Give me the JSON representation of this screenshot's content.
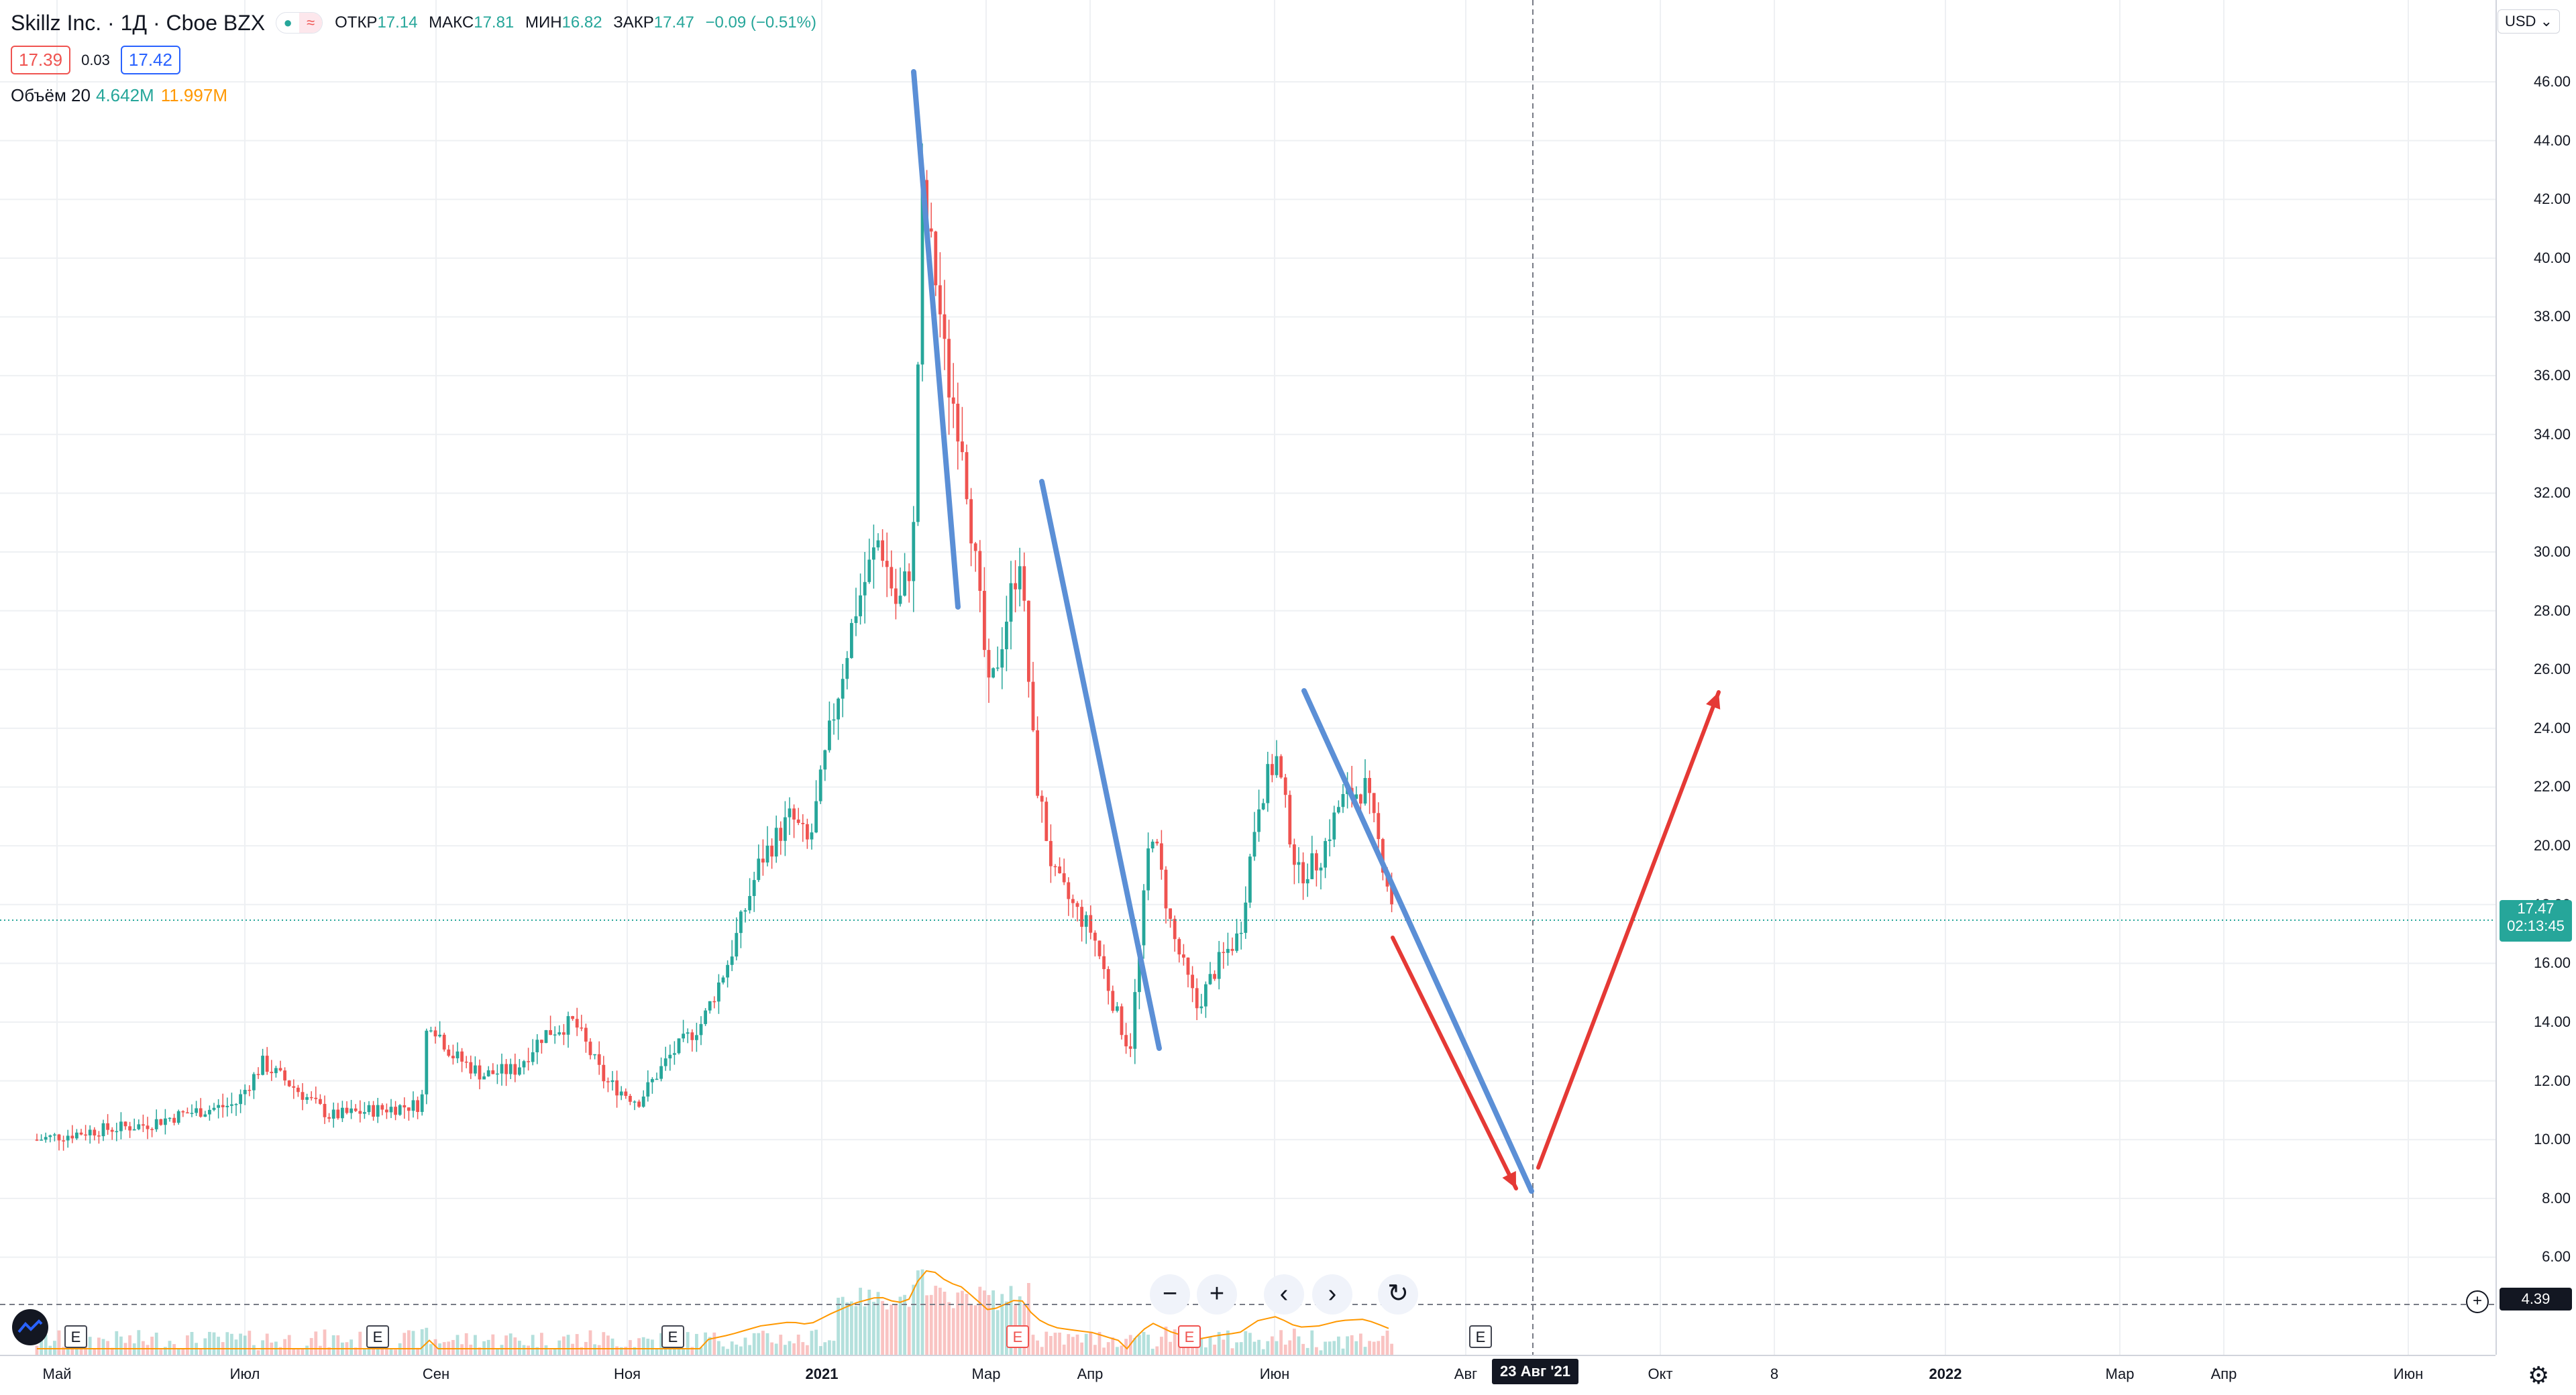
{
  "header": {
    "title": "Skillz Inc. · 1Д · Cboe BZX",
    "o_label": "ОТКР",
    "o": "17.14",
    "h_label": "МАКС",
    "h": "17.81",
    "l_label": "МИН",
    "l": "16.82",
    "c_label": "ЗАКР",
    "c": "17.47",
    "change": "−0.09 (−0.51%)",
    "sell": "17.39",
    "spread": "0.03",
    "buy": "17.42"
  },
  "volume_legend": {
    "label": "Объём 20",
    "v1": "4.642M",
    "v2": "11.997M"
  },
  "currency": "USD",
  "price_axis": {
    "ticks": [
      "46.00",
      "44.00",
      "42.00",
      "40.00",
      "38.00",
      "36.00",
      "34.00",
      "32.00",
      "30.00",
      "28.00",
      "26.00",
      "24.00",
      "22.00",
      "20.00",
      "18.00",
      "16.00",
      "14.00",
      "12.00",
      "10.00",
      "8.00",
      "6.00"
    ],
    "current_price": "17.47",
    "countdown": "02:13:45",
    "line_price": "4.39"
  },
  "time_axis": {
    "labels": [
      "Май",
      "Июл",
      "Сен",
      "Ноя",
      "2021",
      "Мар",
      "Апр",
      "Июн",
      "Авг",
      "Окт",
      "8",
      "2022",
      "Мар",
      "Апр",
      "Июн"
    ],
    "crosshair_date": "23 Авг '21"
  },
  "earnings_marker": "E",
  "icons": {
    "zoom_out": "minus-icon",
    "zoom_in": "plus-icon",
    "left": "chevron-left-icon",
    "right": "chevron-right-icon",
    "reset": "reset-icon",
    "settings": "gear-icon"
  },
  "colors": {
    "up": "#26a69a",
    "down": "#ef5350",
    "trend_blue": "#5b8fd6",
    "arrow_red": "#e53935",
    "volume_ma": "#ff9800"
  },
  "chart_data": {
    "type": "candlestick",
    "series": [
      {
        "name": "Skillz Inc.",
        "points": [
          [
            "2020-04-27",
            10.0
          ],
          [
            "2020-05-15",
            10.3
          ],
          [
            "2020-06-01",
            10.5
          ],
          [
            "2020-06-15",
            10.9
          ],
          [
            "2020-07-01",
            11.2
          ],
          [
            "2020-07-10",
            12.6
          ],
          [
            "2020-07-20",
            11.8
          ],
          [
            "2020-08-01",
            10.8
          ],
          [
            "2020-08-15",
            11.0
          ],
          [
            "2020-08-31",
            11.2
          ],
          [
            "2020-09-02",
            14.2
          ],
          [
            "2020-09-10",
            12.9
          ],
          [
            "2020-09-20",
            12.2
          ],
          [
            "2020-10-01",
            12.4
          ],
          [
            "2020-10-10",
            13.6
          ],
          [
            "2020-10-20",
            14.0
          ],
          [
            "2020-10-30",
            12.0
          ],
          [
            "2020-11-10",
            11.3
          ],
          [
            "2020-11-20",
            12.8
          ],
          [
            "2020-12-01",
            14.0
          ],
          [
            "2020-12-10",
            16.2
          ],
          [
            "2020-12-20",
            19.5
          ],
          [
            "2020-12-30",
            21.0
          ],
          [
            "2021-01-05",
            20.0
          ],
          [
            "2021-01-12",
            24.0
          ],
          [
            "2021-01-20",
            28.0
          ],
          [
            "2021-01-28",
            30.5
          ],
          [
            "2021-02-03",
            28.0
          ],
          [
            "2021-02-08",
            30.0
          ],
          [
            "2021-02-11",
            42.0
          ],
          [
            "2021-02-16",
            39.0
          ],
          [
            "2021-02-19",
            36.0
          ],
          [
            "2021-02-24",
            34.0
          ],
          [
            "2021-03-01",
            29.0
          ],
          [
            "2021-03-05",
            25.0
          ],
          [
            "2021-03-10",
            27.5
          ],
          [
            "2021-03-15",
            30.0
          ],
          [
            "2021-03-20",
            22.5
          ],
          [
            "2021-03-26",
            19.0
          ],
          [
            "2021-04-01",
            18.0
          ],
          [
            "2021-04-08",
            17.0
          ],
          [
            "2021-04-15",
            14.5
          ],
          [
            "2021-04-20",
            13.0
          ],
          [
            "2021-04-27",
            20.8
          ],
          [
            "2021-05-04",
            17.0
          ],
          [
            "2021-05-12",
            14.5
          ],
          [
            "2021-05-19",
            16.0
          ],
          [
            "2021-05-26",
            17.0
          ],
          [
            "2021-06-01",
            21.5
          ],
          [
            "2021-06-07",
            23.0
          ],
          [
            "2021-06-14",
            19.0
          ],
          [
            "2021-06-21",
            19.5
          ],
          [
            "2021-06-28",
            21.5
          ],
          [
            "2021-07-06",
            22.0
          ],
          [
            "2021-07-13",
            19.0
          ],
          [
            "2021-07-16",
            17.47
          ]
        ]
      }
    ],
    "volume_ma_label": "Объём 20",
    "ylim": [
      5,
      47
    ],
    "current_price": 17.47,
    "horizontal_line": 4.39
  }
}
